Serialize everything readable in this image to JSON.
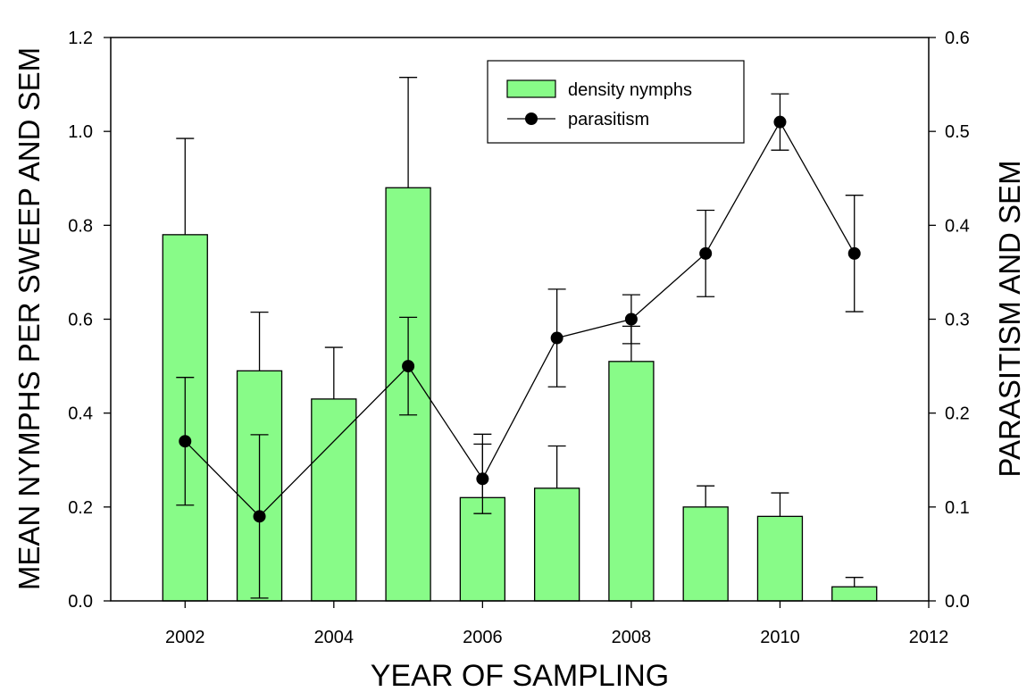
{
  "chart_data": {
    "type": "bar",
    "x_axis": {
      "label": "YEAR OF SAMPLING",
      "range": [
        2001,
        2012
      ],
      "ticks": [
        2002,
        2004,
        2006,
        2008,
        2010,
        2012
      ],
      "tick_labels": [
        "2002",
        "2004",
        "2006",
        "2008",
        "2010",
        "2012"
      ]
    },
    "y_axis_left": {
      "label": "MEAN NYMPHS PER SWEEP AND SEM",
      "range": [
        0,
        1.2
      ],
      "ticks": [
        0,
        0.2,
        0.4,
        0.6,
        0.8,
        1.0,
        1.2
      ],
      "tick_labels": [
        "0.0",
        "0.2",
        "0.4",
        "0.6",
        "0.8",
        "1.0",
        "1.2"
      ]
    },
    "y_axis_right": {
      "label": "PARASITISM AND SEM",
      "range": [
        0,
        0.6
      ],
      "ticks": [
        0,
        0.1,
        0.2,
        0.3,
        0.4,
        0.5,
        0.6
      ],
      "tick_labels": [
        "0.0",
        "0.1",
        "0.2",
        "0.3",
        "0.4",
        "0.5",
        "0.6"
      ]
    },
    "legend_position": "top-right",
    "grid": false,
    "colors": {
      "bar_fill": "#88fb88",
      "bar_stroke": "#000000",
      "line": "#000000",
      "marker": "#000000"
    },
    "series": [
      {
        "name": "density nymphs",
        "type": "bar",
        "axis": "left",
        "x": [
          2002,
          2003,
          2004,
          2005,
          2006,
          2007,
          2008,
          2009,
          2010,
          2011
        ],
        "values": [
          0.78,
          0.49,
          0.43,
          0.88,
          0.22,
          0.24,
          0.51,
          0.2,
          0.18,
          0.03
        ],
        "sem": [
          0.205,
          0.125,
          0.11,
          0.235,
          0.135,
          0.09,
          0.075,
          0.045,
          0.05,
          0.02
        ]
      },
      {
        "name": "parasitism",
        "type": "line",
        "axis": "right",
        "x": [
          2002,
          2003,
          2005,
          2006,
          2007,
          2008,
          2009,
          2010,
          2011
        ],
        "values": [
          0.17,
          0.09,
          0.25,
          0.13,
          0.28,
          0.3,
          0.37,
          0.51,
          0.37
        ],
        "sem": [
          0.068,
          0.087,
          0.052,
          0.037,
          0.052,
          0.026,
          0.046,
          0.03,
          0.062
        ]
      }
    ]
  }
}
